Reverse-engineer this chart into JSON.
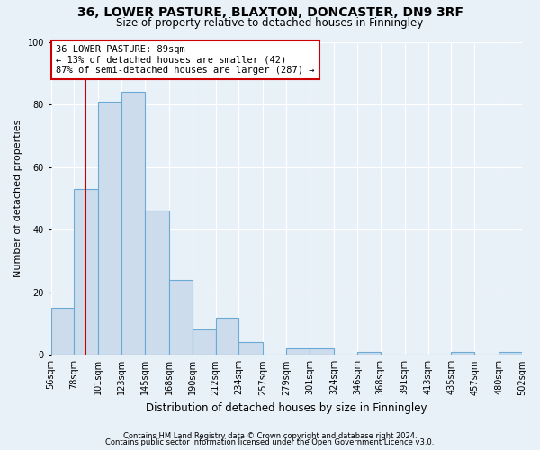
{
  "title1": "36, LOWER PASTURE, BLAXTON, DONCASTER, DN9 3RF",
  "title2": "Size of property relative to detached houses in Finningley",
  "xlabel": "Distribution of detached houses by size in Finningley",
  "ylabel": "Number of detached properties",
  "footnote1": "Contains HM Land Registry data © Crown copyright and database right 2024.",
  "footnote2": "Contains public sector information licensed under the Open Government Licence v3.0.",
  "annotation_title": "36 LOWER PASTURE: 89sqm",
  "annotation_line1": "← 13% of detached houses are smaller (42)",
  "annotation_line2": "87% of semi-detached houses are larger (287) →",
  "property_size": 89,
  "bar_edges": [
    56,
    78,
    101,
    123,
    145,
    168,
    190,
    212,
    234,
    257,
    279,
    301,
    324,
    346,
    368,
    391,
    413,
    435,
    457,
    480,
    502
  ],
  "bar_heights": [
    15,
    53,
    81,
    84,
    46,
    24,
    8,
    12,
    4,
    0,
    2,
    2,
    0,
    1,
    0,
    0,
    0,
    1,
    0,
    1
  ],
  "bar_fill_color": "#ccdcec",
  "bar_edge_color": "#6aaad4",
  "vline_color": "#cc0000",
  "vline_x": 89,
  "annotation_box_color": "#cc0000",
  "ylim": [
    0,
    100
  ],
  "yticks": [
    0,
    20,
    40,
    60,
    80,
    100
  ],
  "background_color": "#e8f0f8",
  "plot_background_color": "#e8f0f8",
  "grid_color": "#ffffff",
  "title1_fontsize": 10,
  "title2_fontsize": 8.5,
  "ylabel_fontsize": 8,
  "xlabel_fontsize": 8.5,
  "annot_fontsize": 7.5,
  "footnote_fontsize": 6,
  "tick_fontsize": 7
}
